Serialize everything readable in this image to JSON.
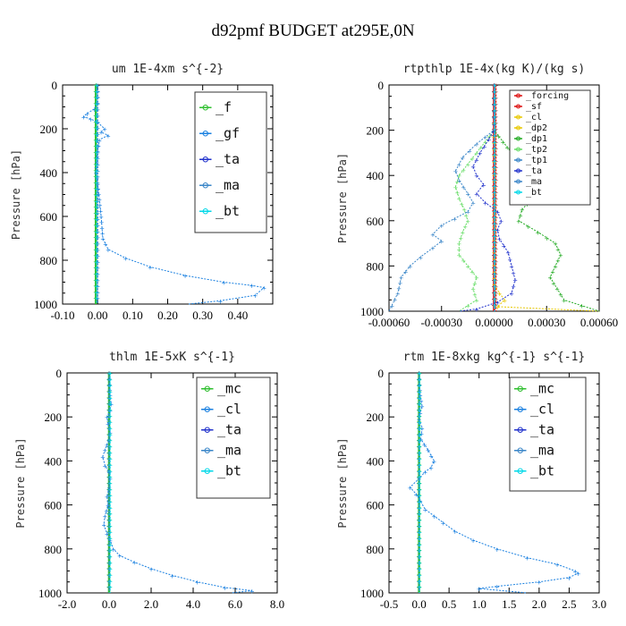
{
  "figure_title": "d92pmf  BUDGET at295E,0N",
  "colors": {
    "green": "#2fbf2f",
    "blue": "#1a80e0",
    "darkblue": "#2233cc",
    "cyan": "#00d8e8",
    "red": "#dd1111",
    "yellow": "#e8c800",
    "darkgreen": "#22aa22",
    "lightgreen": "#66dd66",
    "steel": "#3a86c8"
  },
  "chart_data": [
    {
      "type": "line",
      "title": "um  1E-4xm s^{-2}",
      "ylabel": "Pressure [hPa]",
      "xlim": [
        -0.1,
        0.5
      ],
      "ylim": [
        1000,
        0
      ],
      "xticks": [
        "-0.10",
        "0.00",
        "0.10",
        "0.20",
        "0.30",
        "0.40"
      ],
      "xtick_values": [
        -0.1,
        0.0,
        0.1,
        0.2,
        0.3,
        0.4
      ],
      "yticks": [
        "0",
        "200",
        "400",
        "600",
        "800",
        "1000"
      ],
      "legend": [
        "_f",
        "_gf",
        "_ta",
        "_ma",
        "_bt"
      ],
      "series": [
        {
          "name": "_f",
          "color": "green",
          "thick": 2.5,
          "points": [
            [
              -0.005,
              0
            ],
            [
              -0.005,
              1000
            ]
          ]
        },
        {
          "name": "_gf",
          "color": "blue",
          "thick": 1,
          "points": [
            [
              0,
              0
            ],
            [
              0,
              80
            ],
            [
              -0.01,
              110
            ],
            [
              -0.03,
              130
            ],
            [
              -0.04,
              145
            ],
            [
              -0.02,
              155
            ],
            [
              0.0,
              170
            ],
            [
              0.02,
              200
            ],
            [
              0.01,
              215
            ],
            [
              0.03,
              230
            ],
            [
              0.005,
              250
            ],
            [
              0.0,
              300
            ],
            [
              -0.005,
              400
            ],
            [
              0.0,
              450
            ],
            [
              0.005,
              520
            ],
            [
              0.01,
              600
            ],
            [
              0.015,
              700
            ],
            [
              0.03,
              750
            ],
            [
              0.08,
              790
            ],
            [
              0.15,
              830
            ],
            [
              0.25,
              870
            ],
            [
              0.36,
              900
            ],
            [
              0.44,
              915
            ],
            [
              0.475,
              925
            ],
            [
              0.45,
              960
            ],
            [
              0.35,
              985
            ],
            [
              0.26,
              1000
            ]
          ]
        },
        {
          "name": "_ta",
          "color": "darkblue",
          "thick": 1,
          "points": [
            [
              0,
              0
            ],
            [
              0,
              1000
            ]
          ]
        },
        {
          "name": "_ma",
          "color": "steel",
          "thick": 1,
          "points": [
            [
              0,
              0
            ],
            [
              0,
              1000
            ]
          ]
        },
        {
          "name": "_bt",
          "color": "cyan",
          "thick": 1,
          "points": [
            [
              -0.003,
              0
            ],
            [
              -0.003,
              1000
            ]
          ]
        }
      ]
    },
    {
      "type": "line",
      "title": "rtpthlp  1E-4x(kg K)/(kg s)",
      "ylabel": "Pressure [hPa]",
      "xlim": [
        -0.0006,
        0.0006
      ],
      "ylim": [
        1000,
        0
      ],
      "xticks": [
        "-0.00060",
        "-0.00030",
        "0.00000",
        "0.00030",
        "0.00060"
      ],
      "xtick_values": [
        -0.0006,
        -0.0003,
        0.0,
        0.0003,
        0.0006
      ],
      "yticks": [
        "0",
        "200",
        "400",
        "600",
        "800",
        "1000"
      ],
      "legend": [
        "_forcing",
        "_sf",
        "_cl",
        "_dp2",
        "_dp1",
        "_tp2",
        "_tp1",
        "_ta",
        "_ma",
        "_bt"
      ],
      "series": [
        {
          "name": "_forcing",
          "color": "red",
          "thick": 2.5,
          "points": [
            [
              0,
              0
            ],
            [
              0,
              1000
            ]
          ]
        },
        {
          "name": "_sf",
          "color": "red",
          "thick": 1.5,
          "points": [
            [
              1e-05,
              0
            ],
            [
              1e-05,
              1000
            ]
          ]
        },
        {
          "name": "_cl",
          "color": "yellow",
          "thick": 1,
          "points": [
            [
              0,
              0
            ],
            [
              0,
              880
            ],
            [
              3e-05,
              920
            ],
            [
              6e-05,
              950
            ],
            [
              2e-05,
              980
            ],
            [
              0.0006,
              1000
            ]
          ]
        },
        {
          "name": "_dp2",
          "color": "yellow",
          "thick": 1,
          "points": [
            [
              0,
              0
            ],
            [
              0,
              1000
            ]
          ]
        },
        {
          "name": "_dp1",
          "color": "darkgreen",
          "thick": 1,
          "points": [
            [
              0,
              0
            ],
            [
              0,
              200
            ],
            [
              5e-05,
              250
            ],
            [
              0.0001,
              300
            ],
            [
              0.0002,
              350
            ],
            [
              0.00028,
              400
            ],
            [
              0.00028,
              450
            ],
            [
              0.00022,
              500
            ],
            [
              0.00016,
              550
            ],
            [
              0.00014,
              600
            ],
            [
              0.00025,
              650
            ],
            [
              0.00035,
              700
            ],
            [
              0.00038,
              750
            ],
            [
              0.00035,
              800
            ],
            [
              0.00032,
              850
            ],
            [
              0.00036,
              900
            ],
            [
              0.0004,
              950
            ],
            [
              0.0006,
              1000
            ]
          ]
        },
        {
          "name": "_tp2",
          "color": "lightgreen",
          "thick": 1,
          "points": [
            [
              0,
              0
            ],
            [
              0,
              200
            ],
            [
              -5e-05,
              250
            ],
            [
              -0.0001,
              300
            ],
            [
              -0.00015,
              350
            ],
            [
              -0.0002,
              400
            ],
            [
              -0.00022,
              450
            ],
            [
              -0.0002,
              500
            ],
            [
              -0.00017,
              550
            ],
            [
              -0.00015,
              600
            ],
            [
              -0.00018,
              650
            ],
            [
              -0.0002,
              700
            ],
            [
              -0.0002,
              750
            ],
            [
              -0.00015,
              800
            ],
            [
              -0.0001,
              850
            ],
            [
              -0.00012,
              900
            ],
            [
              -0.0001,
              950
            ],
            [
              -0.0002,
              1000
            ]
          ]
        },
        {
          "name": "_tp1",
          "color": "steel",
          "thick": 1,
          "points": [
            [
              0,
              0
            ],
            [
              0,
              200
            ],
            [
              -0.0001,
              260
            ],
            [
              -0.00018,
              320
            ],
            [
              -0.00022,
              380
            ],
            [
              -0.0002,
              420
            ],
            [
              -0.00015,
              480
            ],
            [
              -0.00012,
              520
            ],
            [
              -0.00015,
              560
            ],
            [
              -0.0003,
              620
            ],
            [
              -0.00035,
              660
            ],
            [
              -0.0003,
              690
            ],
            [
              -0.00035,
              720
            ],
            [
              -0.00042,
              760
            ],
            [
              -0.00048,
              800
            ],
            [
              -0.00053,
              850
            ],
            [
              -0.00055,
              920
            ],
            [
              -0.0006,
              1000
            ]
          ]
        },
        {
          "name": "_ta",
          "color": "darkblue",
          "thick": 1,
          "points": [
            [
              0,
              0
            ],
            [
              0,
              200
            ],
            [
              -3e-05,
              240
            ],
            [
              -8e-05,
              300
            ],
            [
              -0.00012,
              360
            ],
            [
              -0.0001,
              400
            ],
            [
              -6e-05,
              440
            ],
            [
              -0.0001,
              480
            ],
            [
              -5e-05,
              520
            ],
            [
              2e-05,
              560
            ],
            [
              4e-05,
              600
            ],
            [
              2e-05,
              640
            ],
            [
              3e-05,
              680
            ],
            [
              8e-05,
              740
            ],
            [
              0.0001,
              800
            ],
            [
              0.00012,
              860
            ],
            [
              0.0001,
              920
            ],
            [
              2e-05,
              960
            ],
            [
              -0.0001,
              990
            ],
            [
              -0.0002,
              1000
            ]
          ]
        },
        {
          "name": "_ma",
          "color": "steel",
          "thick": 1,
          "points": [
            [
              0,
              0
            ],
            [
              0,
              1000
            ]
          ]
        },
        {
          "name": "_bt",
          "color": "cyan",
          "thick": 1,
          "points": [
            [
              5e-06,
              0
            ],
            [
              5e-06,
              1000
            ]
          ]
        }
      ]
    },
    {
      "type": "line",
      "title": "thlm  1E-5xK s^{-1}",
      "ylabel": "Pressure [hPa]",
      "xlim": [
        -2.0,
        8.0
      ],
      "ylim": [
        1000,
        0
      ],
      "xticks": [
        "-2.0",
        "0.0",
        "2.0",
        "4.0",
        "6.0",
        "8.0"
      ],
      "xtick_values": [
        -2.0,
        0.0,
        2.0,
        4.0,
        6.0,
        8.0
      ],
      "yticks": [
        "0",
        "200",
        "400",
        "600",
        "800",
        "1000"
      ],
      "legend": [
        "_mc",
        "_cl",
        "_ta",
        "_ma",
        "_bt"
      ],
      "series": [
        {
          "name": "_mc",
          "color": "green",
          "thick": 2.5,
          "points": [
            [
              0,
              0
            ],
            [
              0,
              1000
            ]
          ]
        },
        {
          "name": "_cl",
          "color": "blue",
          "thick": 1,
          "points": [
            [
              0,
              0
            ],
            [
              0.05,
              100
            ],
            [
              0.1,
              140
            ],
            [
              0.05,
              170
            ],
            [
              -0.1,
              200
            ],
            [
              -0.05,
              230
            ],
            [
              0.05,
              270
            ],
            [
              0.0,
              300
            ],
            [
              -0.2,
              350
            ],
            [
              -0.3,
              380
            ],
            [
              -0.2,
              420
            ],
            [
              0.0,
              450
            ],
            [
              0.05,
              480
            ],
            [
              0.0,
              520
            ],
            [
              -0.1,
              560
            ],
            [
              -0.05,
              600
            ],
            [
              -0.2,
              650
            ],
            [
              -0.25,
              690
            ],
            [
              -0.1,
              730
            ],
            [
              0.05,
              760
            ],
            [
              0.2,
              800
            ],
            [
              0.5,
              830
            ],
            [
              1.2,
              860
            ],
            [
              2.0,
              890
            ],
            [
              3.0,
              920
            ],
            [
              4.2,
              950
            ],
            [
              5.5,
              975
            ],
            [
              6.8,
              990
            ],
            [
              5.8,
              1000
            ]
          ]
        },
        {
          "name": "_ta",
          "color": "darkblue",
          "thick": 1,
          "points": [
            [
              0,
              0
            ],
            [
              0,
              1000
            ]
          ]
        },
        {
          "name": "_ma",
          "color": "steel",
          "thick": 1,
          "points": [
            [
              0,
              0
            ],
            [
              0,
              1000
            ]
          ]
        },
        {
          "name": "_bt",
          "color": "cyan",
          "thick": 1,
          "points": [
            [
              0.05,
              0
            ],
            [
              0.05,
              1000
            ]
          ]
        }
      ]
    },
    {
      "type": "line",
      "title": "rtm  1E-8xkg kg^{-1} s^{-1}",
      "ylabel": "Pressure [hPa]",
      "xlim": [
        -0.5,
        3.0
      ],
      "ylim": [
        1000,
        0
      ],
      "xticks": [
        "-0.5",
        "0.0",
        "0.5",
        "1.0",
        "1.5",
        "2.0",
        "2.5",
        "3.0"
      ],
      "xtick_values": [
        -0.5,
        0.0,
        0.5,
        1.0,
        1.5,
        2.0,
        2.5,
        3.0
      ],
      "yticks": [
        "0",
        "200",
        "400",
        "600",
        "800",
        "1000"
      ],
      "legend": [
        "_mc",
        "_cl",
        "_ta",
        "_ma",
        "_bt"
      ],
      "series": [
        {
          "name": "_mc",
          "color": "green",
          "thick": 2.5,
          "points": [
            [
              0,
              0
            ],
            [
              0,
              1000
            ]
          ]
        },
        {
          "name": "_cl",
          "color": "blue",
          "thick": 1,
          "points": [
            [
              0,
              0
            ],
            [
              0.02,
              100
            ],
            [
              0.05,
              150
            ],
            [
              0.02,
              180
            ],
            [
              0.0,
              210
            ],
            [
              0.05,
              250
            ],
            [
              0.03,
              300
            ],
            [
              0.15,
              350
            ],
            [
              0.25,
              400
            ],
            [
              0.2,
              430
            ],
            [
              0.1,
              450
            ],
            [
              0.0,
              480
            ],
            [
              -0.15,
              520
            ],
            [
              -0.05,
              550
            ],
            [
              0.02,
              580
            ],
            [
              0.1,
              620
            ],
            [
              0.25,
              650
            ],
            [
              0.4,
              680
            ],
            [
              0.6,
              720
            ],
            [
              0.9,
              760
            ],
            [
              1.3,
              800
            ],
            [
              1.8,
              840
            ],
            [
              2.3,
              870
            ],
            [
              2.6,
              900
            ],
            [
              2.65,
              910
            ],
            [
              2.5,
              930
            ],
            [
              2.0,
              950
            ],
            [
              1.3,
              970
            ],
            [
              1.0,
              980
            ],
            [
              1.8,
              1000
            ]
          ]
        },
        {
          "name": "_ta",
          "color": "darkblue",
          "thick": 1,
          "points": [
            [
              0,
              0
            ],
            [
              0,
              1000
            ]
          ]
        },
        {
          "name": "_ma",
          "color": "steel",
          "thick": 1,
          "points": [
            [
              0,
              0
            ],
            [
              0,
              1000
            ]
          ]
        },
        {
          "name": "_bt",
          "color": "cyan",
          "thick": 1,
          "points": [
            [
              0.01,
              0
            ],
            [
              0.01,
              1000
            ]
          ]
        }
      ]
    }
  ]
}
